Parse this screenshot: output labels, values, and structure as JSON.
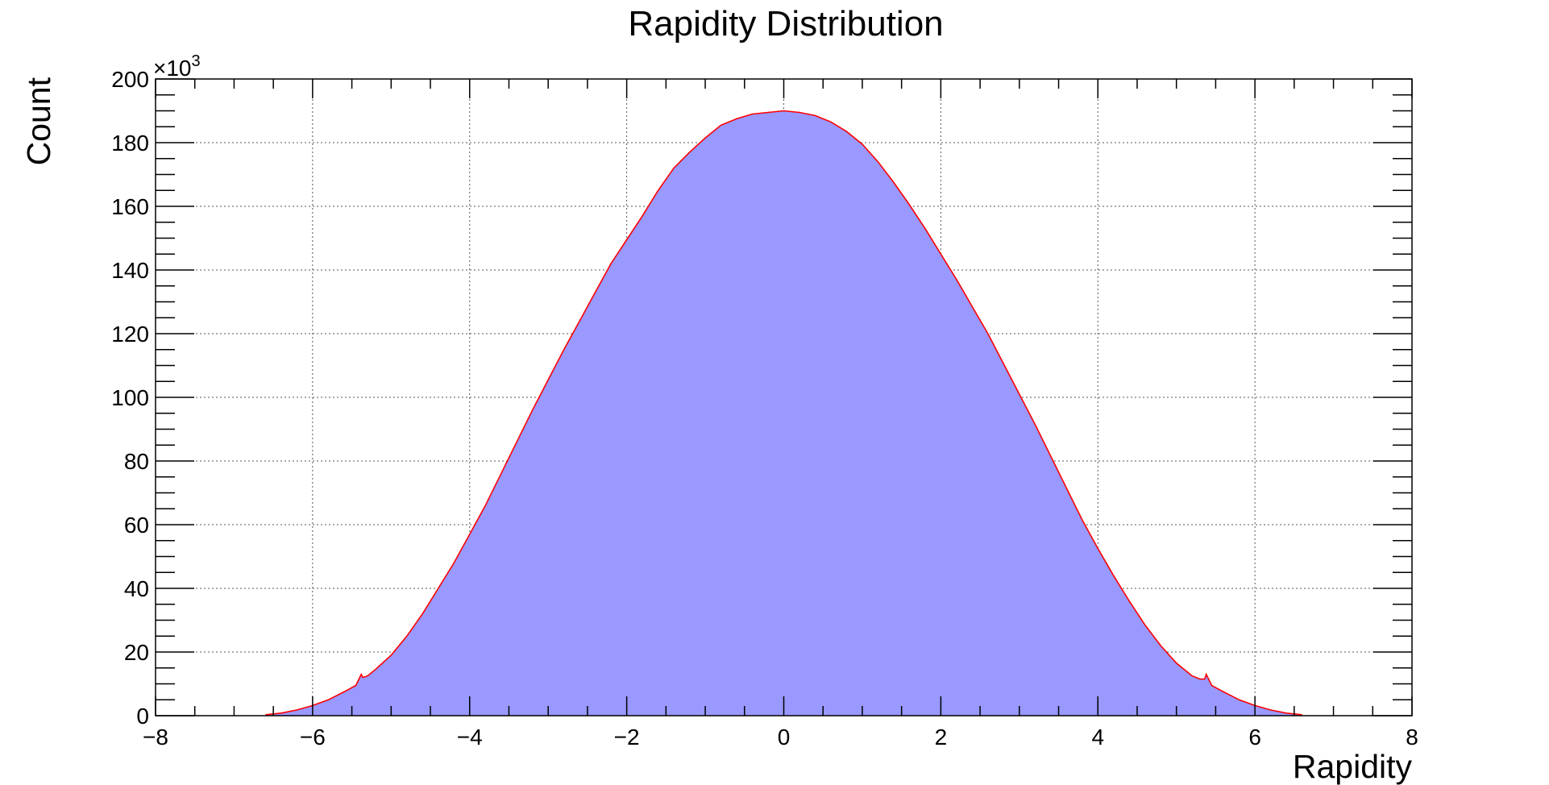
{
  "chart_data": {
    "type": "area",
    "title": "Rapidity Distribution",
    "xlabel": "Rapidity",
    "ylabel": "Count",
    "y_multiplier_base": "×10",
    "y_multiplier_exp": "3",
    "xlim": [
      -8,
      8
    ],
    "ylim": [
      0,
      200
    ],
    "y_units": "×10^3",
    "x_ticks": [
      -8,
      -6,
      -4,
      -2,
      0,
      2,
      4,
      6,
      8
    ],
    "x_tick_labels": [
      "−8",
      "−6",
      "−4",
      "−2",
      "0",
      "2",
      "4",
      "6",
      "8"
    ],
    "y_ticks": [
      0,
      20,
      40,
      60,
      80,
      100,
      120,
      140,
      160,
      180,
      200
    ],
    "y_tick_labels": [
      "0",
      "20",
      "40",
      "60",
      "80",
      "100",
      "120",
      "140",
      "160",
      "180",
      "200"
    ],
    "grid": true,
    "fill_color": "#9999ff",
    "line_color": "#ff0000",
    "x": [
      -6.6,
      -6.4,
      -6.2,
      -6.0,
      -5.8,
      -5.6,
      -5.45,
      -5.38,
      -5.36,
      -5.3,
      -5.2,
      -5.0,
      -4.8,
      -4.6,
      -4.4,
      -4.2,
      -4.0,
      -3.8,
      -3.6,
      -3.4,
      -3.2,
      -3.0,
      -2.8,
      -2.6,
      -2.4,
      -2.2,
      -2.0,
      -1.8,
      -1.6,
      -1.4,
      -1.2,
      -1.0,
      -0.8,
      -0.6,
      -0.4,
      -0.2,
      0.0,
      0.2,
      0.4,
      0.6,
      0.8,
      1.0,
      1.2,
      1.4,
      1.6,
      1.8,
      2.0,
      2.2,
      2.4,
      2.6,
      2.8,
      3.0,
      3.2,
      3.4,
      3.6,
      3.8,
      4.0,
      4.2,
      4.4,
      4.6,
      4.8,
      5.0,
      5.2,
      5.3,
      5.36,
      5.38,
      5.45,
      5.6,
      5.8,
      6.0,
      6.2,
      6.4,
      6.6
    ],
    "y": [
      0.3,
      0.8,
      1.8,
      3.2,
      5.0,
      7.5,
      9.5,
      13.0,
      12.0,
      12.5,
      14.5,
      19.0,
      25.0,
      32.0,
      40.0,
      48.0,
      57.0,
      66.0,
      76.0,
      86.0,
      96.0,
      105.5,
      115.0,
      124.0,
      133.0,
      142.0,
      149.5,
      157.0,
      165.0,
      172.0,
      177.0,
      181.5,
      185.5,
      187.5,
      189.0,
      189.5,
      190.0,
      189.5,
      188.5,
      186.5,
      183.5,
      179.5,
      174.0,
      167.5,
      160.5,
      153.0,
      145.0,
      137.0,
      128.5,
      120.0,
      110.5,
      101.0,
      91.5,
      81.5,
      71.5,
      61.5,
      52.5,
      44.0,
      36.0,
      28.5,
      22.0,
      16.5,
      12.5,
      11.5,
      11.5,
      13.0,
      9.5,
      7.5,
      5.0,
      3.2,
      1.8,
      0.8,
      0.3
    ]
  }
}
